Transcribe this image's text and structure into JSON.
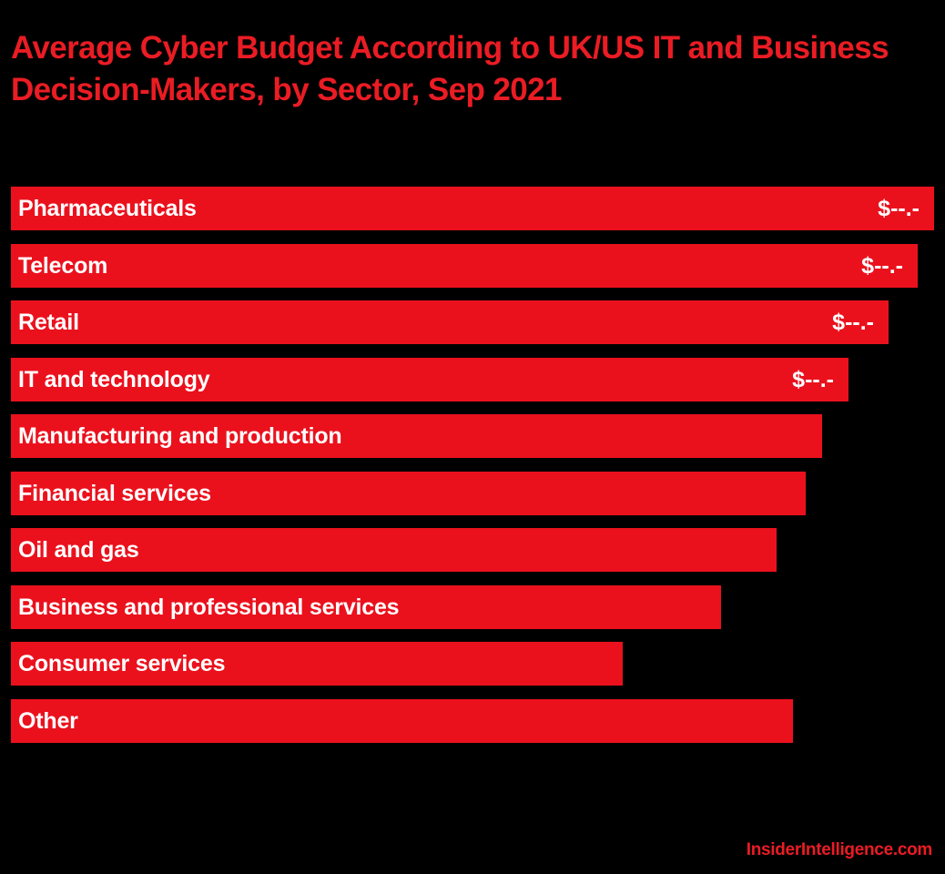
{
  "chart_data": {
    "type": "bar",
    "orientation": "horizontal",
    "title": "Average Cyber Budget According to UK/US IT and Business Decision-Makers, by Sector, Sep 2021",
    "categories": [
      "Pharmaceuticals",
      "Telecom",
      "Retail",
      "IT and technology",
      "Manufacturing and production",
      "Financial services",
      "Oil and gas",
      "Business and professional services",
      "Consumer services",
      "Other"
    ],
    "values": [
      100,
      98.2,
      95.1,
      90.7,
      87.9,
      86.1,
      82.9,
      76.9,
      66.3,
      84.7
    ],
    "value_note": "relative bar length (max = 100); actual values are masked in the image",
    "data_labels": [
      "$--.-",
      "$--.-",
      "$--.-",
      "$--.-",
      "",
      "",
      "",
      "",
      "",
      ""
    ],
    "xlabel": "",
    "ylabel": "",
    "grid": false,
    "legend": null,
    "colors": {
      "bar": "#ea111d",
      "title": "#ea1c24",
      "background": "#000000",
      "label_text": "#ffffff"
    }
  },
  "header": {
    "title": "Average Cyber Budget According to UK/US IT and Business Decision-Makers, by Sector, Sep 2021"
  },
  "footer": {
    "source": "InsiderIntelligence.com"
  }
}
